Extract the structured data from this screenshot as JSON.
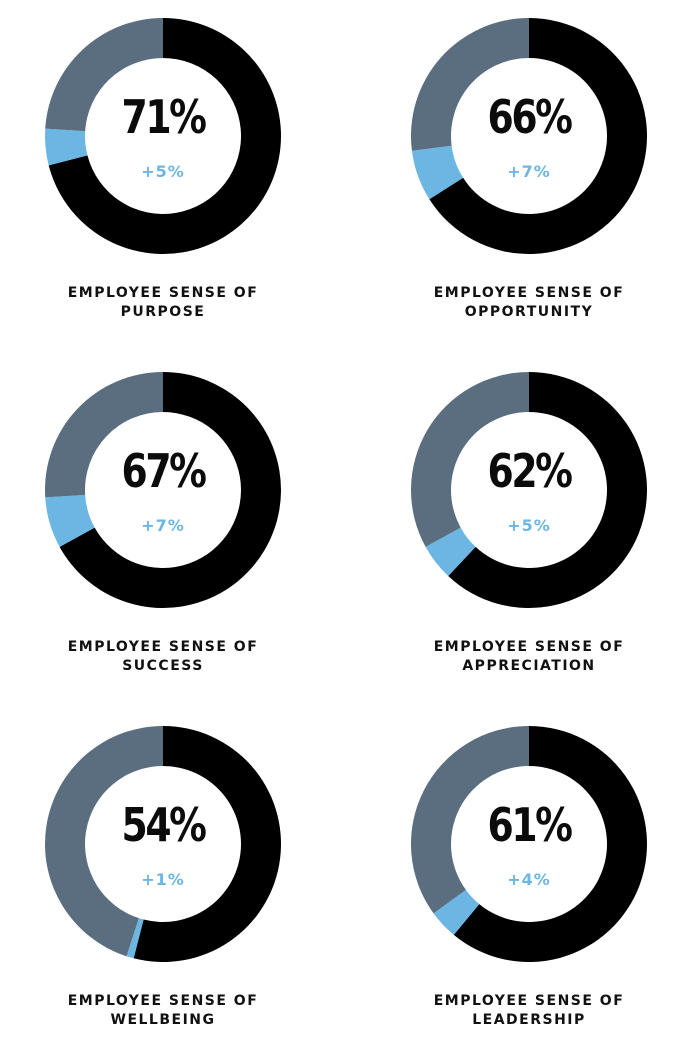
{
  "colors": {
    "score": "#000000",
    "gain": "#6cb6e3",
    "remainder": "#5a6e80",
    "delta_text": "#6cb6e3"
  },
  "chart_data": [
    {
      "type": "pie",
      "value_label": "71%",
      "delta_label": "+5%",
      "label_line1": "EMPLOYEE SENSE OF",
      "label_line2": "PURPOSE",
      "value": 71,
      "delta": 5
    },
    {
      "type": "pie",
      "value_label": "66%",
      "delta_label": "+7%",
      "label_line1": "EMPLOYEE SENSE OF",
      "label_line2": "OPPORTUNITY",
      "value": 66,
      "delta": 7
    },
    {
      "type": "pie",
      "value_label": "67%",
      "delta_label": "+7%",
      "label_line1": "EMPLOYEE SENSE OF",
      "label_line2": "SUCCESS",
      "value": 67,
      "delta": 7
    },
    {
      "type": "pie",
      "value_label": "62%",
      "delta_label": "+5%",
      "label_line1": "EMPLOYEE SENSE OF",
      "label_line2": "APPRECIATION",
      "value": 62,
      "delta": 5
    },
    {
      "type": "pie",
      "value_label": "54%",
      "delta_label": "+1%",
      "label_line1": "EMPLOYEE SENSE OF",
      "label_line2": "WELLBEING",
      "value": 54,
      "delta": 1
    },
    {
      "type": "pie",
      "value_label": "61%",
      "delta_label": "+4%",
      "label_line1": "EMPLOYEE SENSE OF",
      "label_line2": "LEADERSHIP",
      "value": 61,
      "delta": 4
    }
  ]
}
